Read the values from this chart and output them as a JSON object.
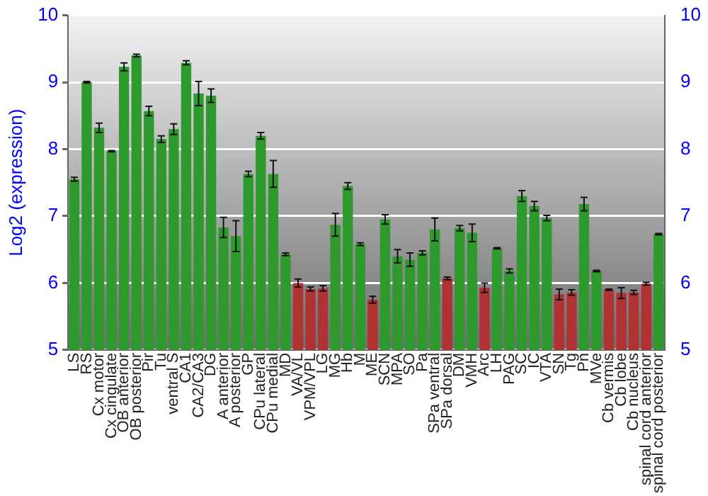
{
  "chart_data": {
    "type": "bar",
    "ylabel": "Log2 (expression)",
    "categories": [
      "LS",
      "RS",
      "Cx motor",
      "Cx cingulate",
      "OB anterior",
      "OB posterior",
      "Pir",
      "Tu",
      "ventral S",
      "CA1",
      "CA2/CA3",
      "DG",
      "A anterior",
      "A posterior",
      "GP",
      "CPu lateral",
      "CPu medial",
      "MD",
      "VA/VL",
      "VPM/VPL",
      "LG",
      "MG",
      "Hb",
      "M",
      "ME",
      "SCN",
      "MPA",
      "SO",
      "Pa",
      "SPa ventral",
      "SPa dorsal",
      "DM",
      "VMH",
      "Arc",
      "LH",
      "PAG",
      "SC",
      "IC",
      "VTA",
      "SN",
      "Tg",
      "Pn",
      "MVe",
      "Cb vermis",
      "Cb lobe",
      "Cb nucleus",
      "spinal cord anterior",
      "spinal cord posterior"
    ],
    "values": [
      7.55,
      9.0,
      8.32,
      7.97,
      9.23,
      9.4,
      8.57,
      8.15,
      8.3,
      9.29,
      8.83,
      8.8,
      6.83,
      6.7,
      7.63,
      8.2,
      7.63,
      6.43,
      6.0,
      5.91,
      5.92,
      6.87,
      7.45,
      6.58,
      5.75,
      6.95,
      6.4,
      6.35,
      6.45,
      6.8,
      6.07,
      6.82,
      6.75,
      5.93,
      6.52,
      6.18,
      7.3,
      7.15,
      6.97,
      5.83,
      5.86,
      7.18,
      6.18,
      5.9,
      5.85,
      5.86,
      5.99,
      6.73
    ],
    "errors": [
      0.03,
      0.01,
      0.07,
      0.01,
      0.06,
      0.02,
      0.07,
      0.05,
      0.08,
      0.03,
      0.18,
      0.1,
      0.15,
      0.23,
      0.04,
      0.05,
      0.2,
      0.02,
      0.06,
      0.03,
      0.04,
      0.17,
      0.05,
      0.02,
      0.05,
      0.07,
      0.1,
      0.1,
      0.03,
      0.17,
      0.02,
      0.04,
      0.13,
      0.07,
      0.01,
      0.03,
      0.08,
      0.07,
      0.04,
      0.08,
      0.04,
      0.1,
      0.01,
      0.01,
      0.08,
      0.03,
      0.02,
      0.01
    ],
    "colors": [
      "#2e9a2e",
      "#2e9a2e",
      "#2e9a2e",
      "#2e9a2e",
      "#2e9a2e",
      "#2e9a2e",
      "#2e9a2e",
      "#2e9a2e",
      "#2e9a2e",
      "#2e9a2e",
      "#2e9a2e",
      "#2e9a2e",
      "#2e9a2e",
      "#2e9a2e",
      "#2e9a2e",
      "#2e9a2e",
      "#2e9a2e",
      "#2e9a2e",
      "#b03232",
      "#b03232",
      "#b03232",
      "#2e9a2e",
      "#2e9a2e",
      "#2e9a2e",
      "#b03232",
      "#2e9a2e",
      "#2e9a2e",
      "#2e9a2e",
      "#2e9a2e",
      "#2e9a2e",
      "#b03232",
      "#2e9a2e",
      "#2e9a2e",
      "#b03232",
      "#2e9a2e",
      "#2e9a2e",
      "#2e9a2e",
      "#2e9a2e",
      "#2e9a2e",
      "#b03232",
      "#b03232",
      "#2e9a2e",
      "#2e9a2e",
      "#b03232",
      "#b03232",
      "#b03232",
      "#b03232",
      "#2e9a2e"
    ],
    "ylim": [
      5,
      10
    ],
    "yticks": [
      5,
      6,
      7,
      8,
      9,
      10
    ],
    "y2lim": [
      5,
      10
    ],
    "y2ticks": [
      5,
      6,
      7,
      8,
      9,
      10
    ],
    "grid": "y",
    "legend": false
  }
}
